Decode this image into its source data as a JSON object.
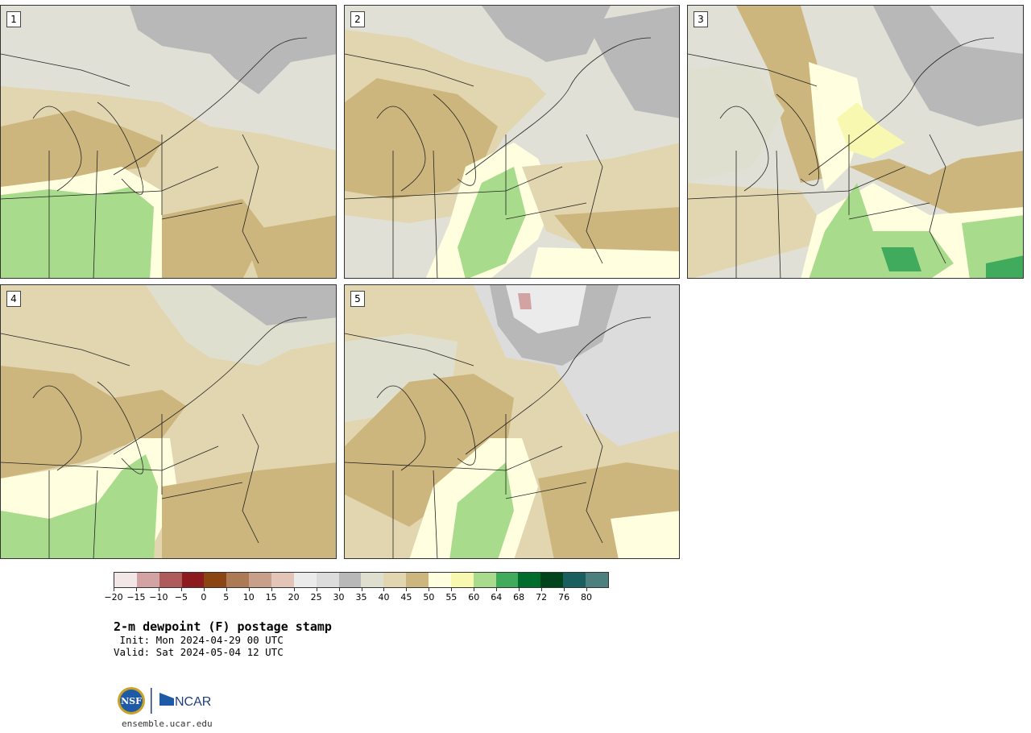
{
  "panels": [
    {
      "label": "1"
    },
    {
      "label": "2"
    },
    {
      "label": "3"
    },
    {
      "label": "4"
    },
    {
      "label": "5"
    }
  ],
  "colorbar": {
    "colors": [
      "#f2e6e6",
      "#d3a2a2",
      "#b05b5b",
      "#8c1a1f",
      "#8b4513",
      "#ad7a56",
      "#c8a08a",
      "#e3c5b8",
      "#ebebeb",
      "#dcdcdc",
      "#b8b8b8",
      "#dfdfd0",
      "#e2d6b0",
      "#cdb67e",
      "#ffffe0",
      "#f8f8b0",
      "#a8dc8c",
      "#41ab5d",
      "#006d2c",
      "#00441b",
      "#1a5f5f",
      "#4d7f7f"
    ],
    "tick_labels": [
      "−20",
      "−15",
      "−10",
      "−5",
      "0",
      "5",
      "10",
      "15",
      "20",
      "25",
      "30",
      "35",
      "40",
      "45",
      "50",
      "55",
      "60",
      "64",
      "68",
      "72",
      "76",
      "80"
    ]
  },
  "title": "2-m dewpoint (F) postage stamp",
  "init": " Init: Mon 2024-04-29 00 UTC",
  "valid": "Valid: Sat 2024-05-04 12 UTC",
  "logo": {
    "nsf": "NSF",
    "ncar": "NCAR"
  },
  "site": "ensemble.ucar.edu"
}
